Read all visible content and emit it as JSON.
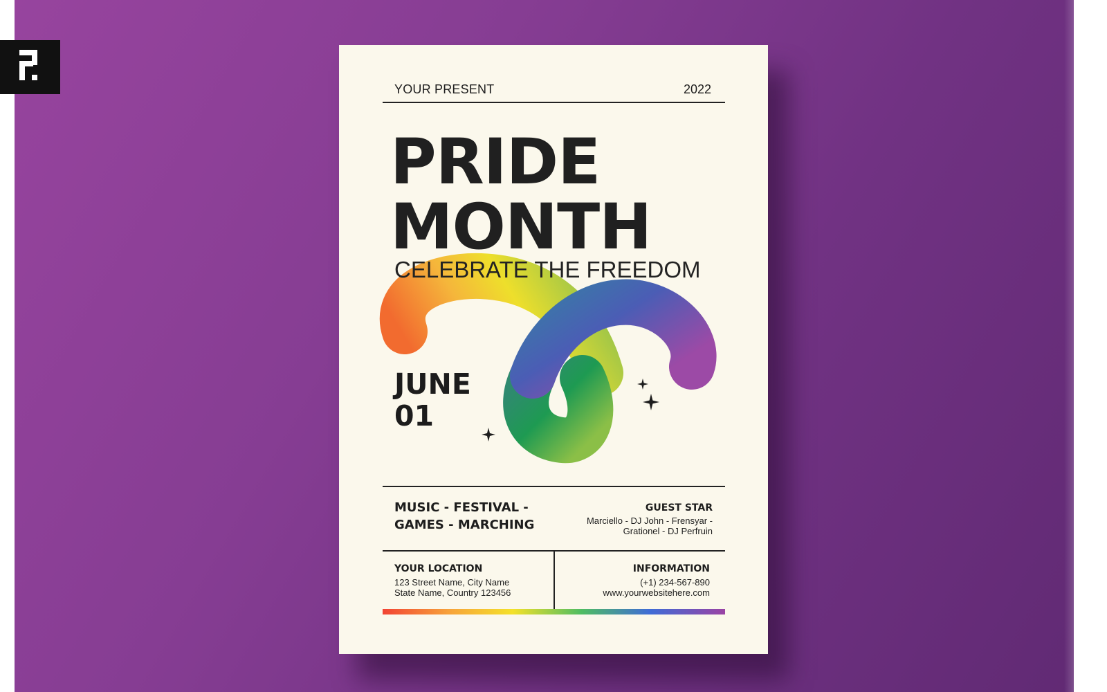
{
  "colors": {
    "background": "#8a3f95",
    "paper": "#fbf8ec",
    "ink": "#1d1d1d",
    "rainbow": [
      "#f24434",
      "#f7a53a",
      "#f4e12a",
      "#4fbd62",
      "#3f6cd6",
      "#9a43a4"
    ]
  },
  "icons": {
    "logo": "brand-mark",
    "sparkle": "sparkle-star"
  },
  "flyer": {
    "presenter": "YOUR PRESENT",
    "year": "2022",
    "title_line_1": "PRIDE",
    "title_line_2": "MONTH",
    "tagline": "CELEBRATE THE FREEDOM",
    "date_line_1": "JUNE",
    "date_line_2": "01",
    "activities_line_1": "MUSIC - FESTIVAL -",
    "activities_line_2": "GAMES - MARCHING",
    "guest_title": "GUEST STAR",
    "guest_line_1": "Marciello - DJ John - Frensyar -",
    "guest_line_2": "Grationel - DJ Perfruin",
    "location_title": "YOUR LOCATION",
    "location_line_1": "123 Street Name, City Name",
    "location_line_2": "State Name, Country 123456",
    "info_title": "INFORMATION",
    "phone": "(+1) 234-567-890",
    "website": "www.yourwebsitehere.com"
  }
}
